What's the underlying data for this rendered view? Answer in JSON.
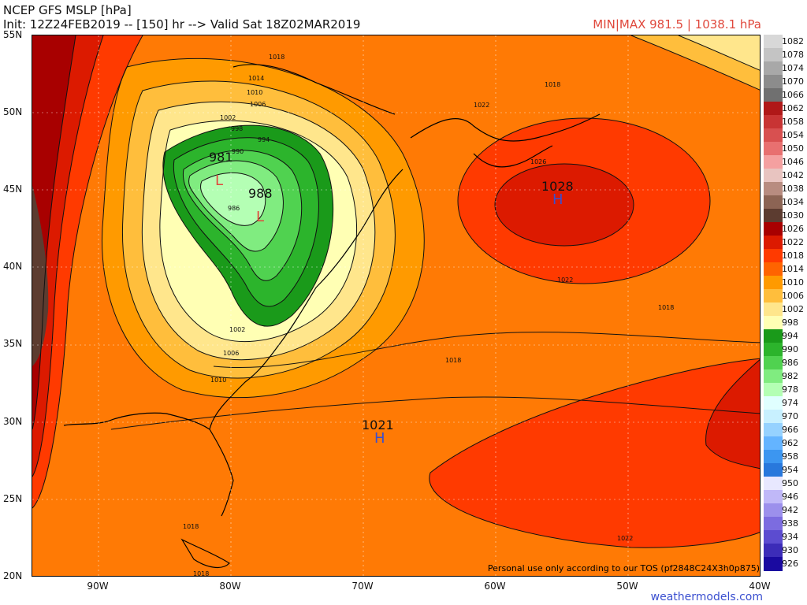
{
  "header": {
    "title": "NCEP GFS MSLP [hPa]",
    "subtitle": "Init: 12Z24FEB2019 -- [150] hr --> Valid Sat 18Z02MAR2019",
    "minmax": "MIN|MAX 981.5 | 1038.1 hPa"
  },
  "axes": {
    "lat_labels": [
      "55N",
      "50N",
      "45N",
      "40N",
      "35N",
      "30N",
      "25N",
      "20N"
    ],
    "lon_labels": [
      "90W",
      "80W",
      "70W",
      "60W",
      "50W",
      "40W"
    ]
  },
  "legend": {
    "levels": [
      "1082",
      "1078",
      "1074",
      "1070",
      "1066",
      "1062",
      "1058",
      "1054",
      "1050",
      "1046",
      "1042",
      "1038",
      "1034",
      "1030",
      "1026",
      "1022",
      "1018",
      "1014",
      "1010",
      "1006",
      "1002",
      "998",
      "994",
      "990",
      "986",
      "982",
      "978",
      "974",
      "970",
      "966",
      "962",
      "958",
      "954",
      "950",
      "946",
      "942",
      "938",
      "934",
      "930",
      "926"
    ],
    "colors": [
      "#d8d8d8",
      "#c4c4c4",
      "#a8a8a8",
      "#8c8c8c",
      "#707070",
      "#b01818",
      "#c83434",
      "#d85050",
      "#e87070",
      "#f4a0a0",
      "#e8c4c0",
      "#b88c80",
      "#8c6454",
      "#5c3c30",
      "#a80000",
      "#dc1a00",
      "#ff3a00",
      "#ff6400",
      "#ff9a00",
      "#ffbe3c",
      "#ffe68c",
      "#ffffb4",
      "#1a9a1a",
      "#2cb42c",
      "#50d250",
      "#80ec80",
      "#b4ffb4",
      "#e0ffff",
      "#c8f0ff",
      "#96d2ff",
      "#64b4ff",
      "#3c96f0",
      "#2878dc",
      "#e8e8ff",
      "#c0b8f8",
      "#9c90ec",
      "#7c6ce0",
      "#5c4cd0",
      "#3c2cb8",
      "#1a0aa0"
    ]
  },
  "pressure_centers": [
    {
      "label": "981",
      "type": "L",
      "color": "#e0483c"
    },
    {
      "label": "988",
      "type": "L",
      "color": "#e0483c"
    },
    {
      "label": "1028",
      "type": "H",
      "color": "#3a4fd0"
    },
    {
      "label": "1021",
      "type": "H",
      "color": "#3a4fd0"
    }
  ],
  "isobar_labels": [
    "1018",
    "1014",
    "1010",
    "1006",
    "1002",
    "998",
    "994",
    "990",
    "986",
    "1022",
    "1026",
    "1018",
    "1022",
    "1018",
    "1002",
    "1006",
    "1010",
    "1018",
    "1022",
    "1018",
    "1018"
  ],
  "footer": {
    "tos": "Personal use only according to our TOS (pf2848C24X3h0p875)",
    "brand": "weathermodels.com"
  }
}
